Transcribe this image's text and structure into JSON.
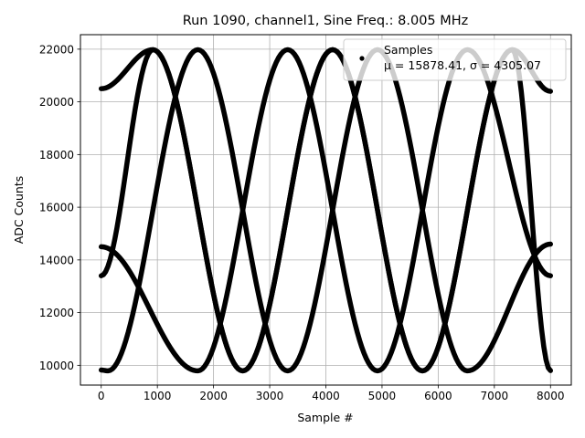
{
  "chart_data": {
    "type": "scatter",
    "title": "Run 1090, channel1, Sine Freq.: 8.005 MHz",
    "xlabel": "Sample #",
    "ylabel": "ADC Counts",
    "xlim": [
      -370,
      8370
    ],
    "ylim": [
      9250,
      22550
    ],
    "xticks": [
      0,
      1000,
      2000,
      3000,
      4000,
      5000,
      6000,
      7000,
      8000
    ],
    "yticks": [
      10000,
      12000,
      14000,
      16000,
      18000,
      20000,
      22000
    ],
    "grid": true,
    "legend_position": "top-right",
    "series": [
      {
        "name": "Samples",
        "stats_label": "μ = 15878.41, σ = 4305.07",
        "color": "#000000",
        "marker": "dot",
        "description": "four interleaved sine traces, amplitude ~6100 counts about ~15880, period ~3200 samples",
        "traces": [
          {
            "x": [
              0,
              920,
              2520,
              4120,
              5720,
              7320,
              8000
            ],
            "y": [
              20500,
              21980,
              9790,
              21980,
              9790,
              21980,
              20400
            ]
          },
          {
            "x": [
              0,
              120,
              1720,
              3320,
              4920,
              6520,
              8000
            ],
            "y": [
              9820,
              9790,
              21980,
              9790,
              21980,
              9790,
              14600
            ]
          },
          {
            "x": [
              0,
              1720,
              3320,
              4920,
              6520,
              8000
            ],
            "y": [
              14500,
              9790,
              21980,
              9790,
              21980,
              13400
            ]
          },
          {
            "x": [
              0,
              920,
              2520,
              4120,
              5720,
              7320,
              8000
            ],
            "y": [
              13400,
              21980,
              9790,
              21980,
              9790,
              21980,
              9800
            ]
          }
        ]
      }
    ]
  },
  "icons": {
    "legend_marker": "dot-marker-icon"
  }
}
